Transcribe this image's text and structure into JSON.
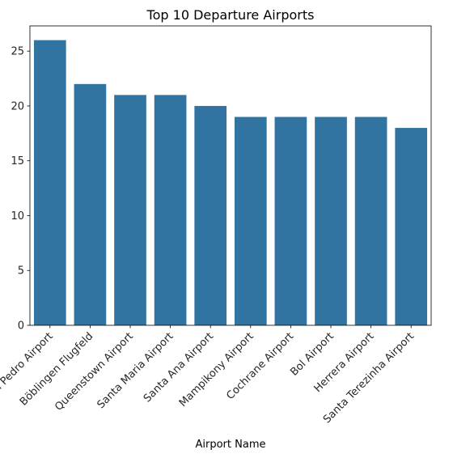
{
  "chart_data": {
    "type": "bar",
    "title": "Top 10 Departure Airports",
    "xlabel": "Airport Name",
    "ylabel": "",
    "categories": [
      "San Pedro Airport",
      "Böblingen Flugfeld",
      "Queenstown Airport",
      "Santa Maria Airport",
      "Santa Ana Airport",
      "Mampikony Airport",
      "Cochrane Airport",
      "Bol Airport",
      "Herrera Airport",
      "Santa Terezinha Airport"
    ],
    "values": [
      26,
      22,
      21,
      21,
      20,
      19,
      19,
      19,
      19,
      18
    ],
    "ylim": [
      0,
      27.3
    ],
    "yticks": [
      0,
      5,
      10,
      15,
      20,
      25
    ],
    "grid": false,
    "bar_color": "#3274a1"
  }
}
